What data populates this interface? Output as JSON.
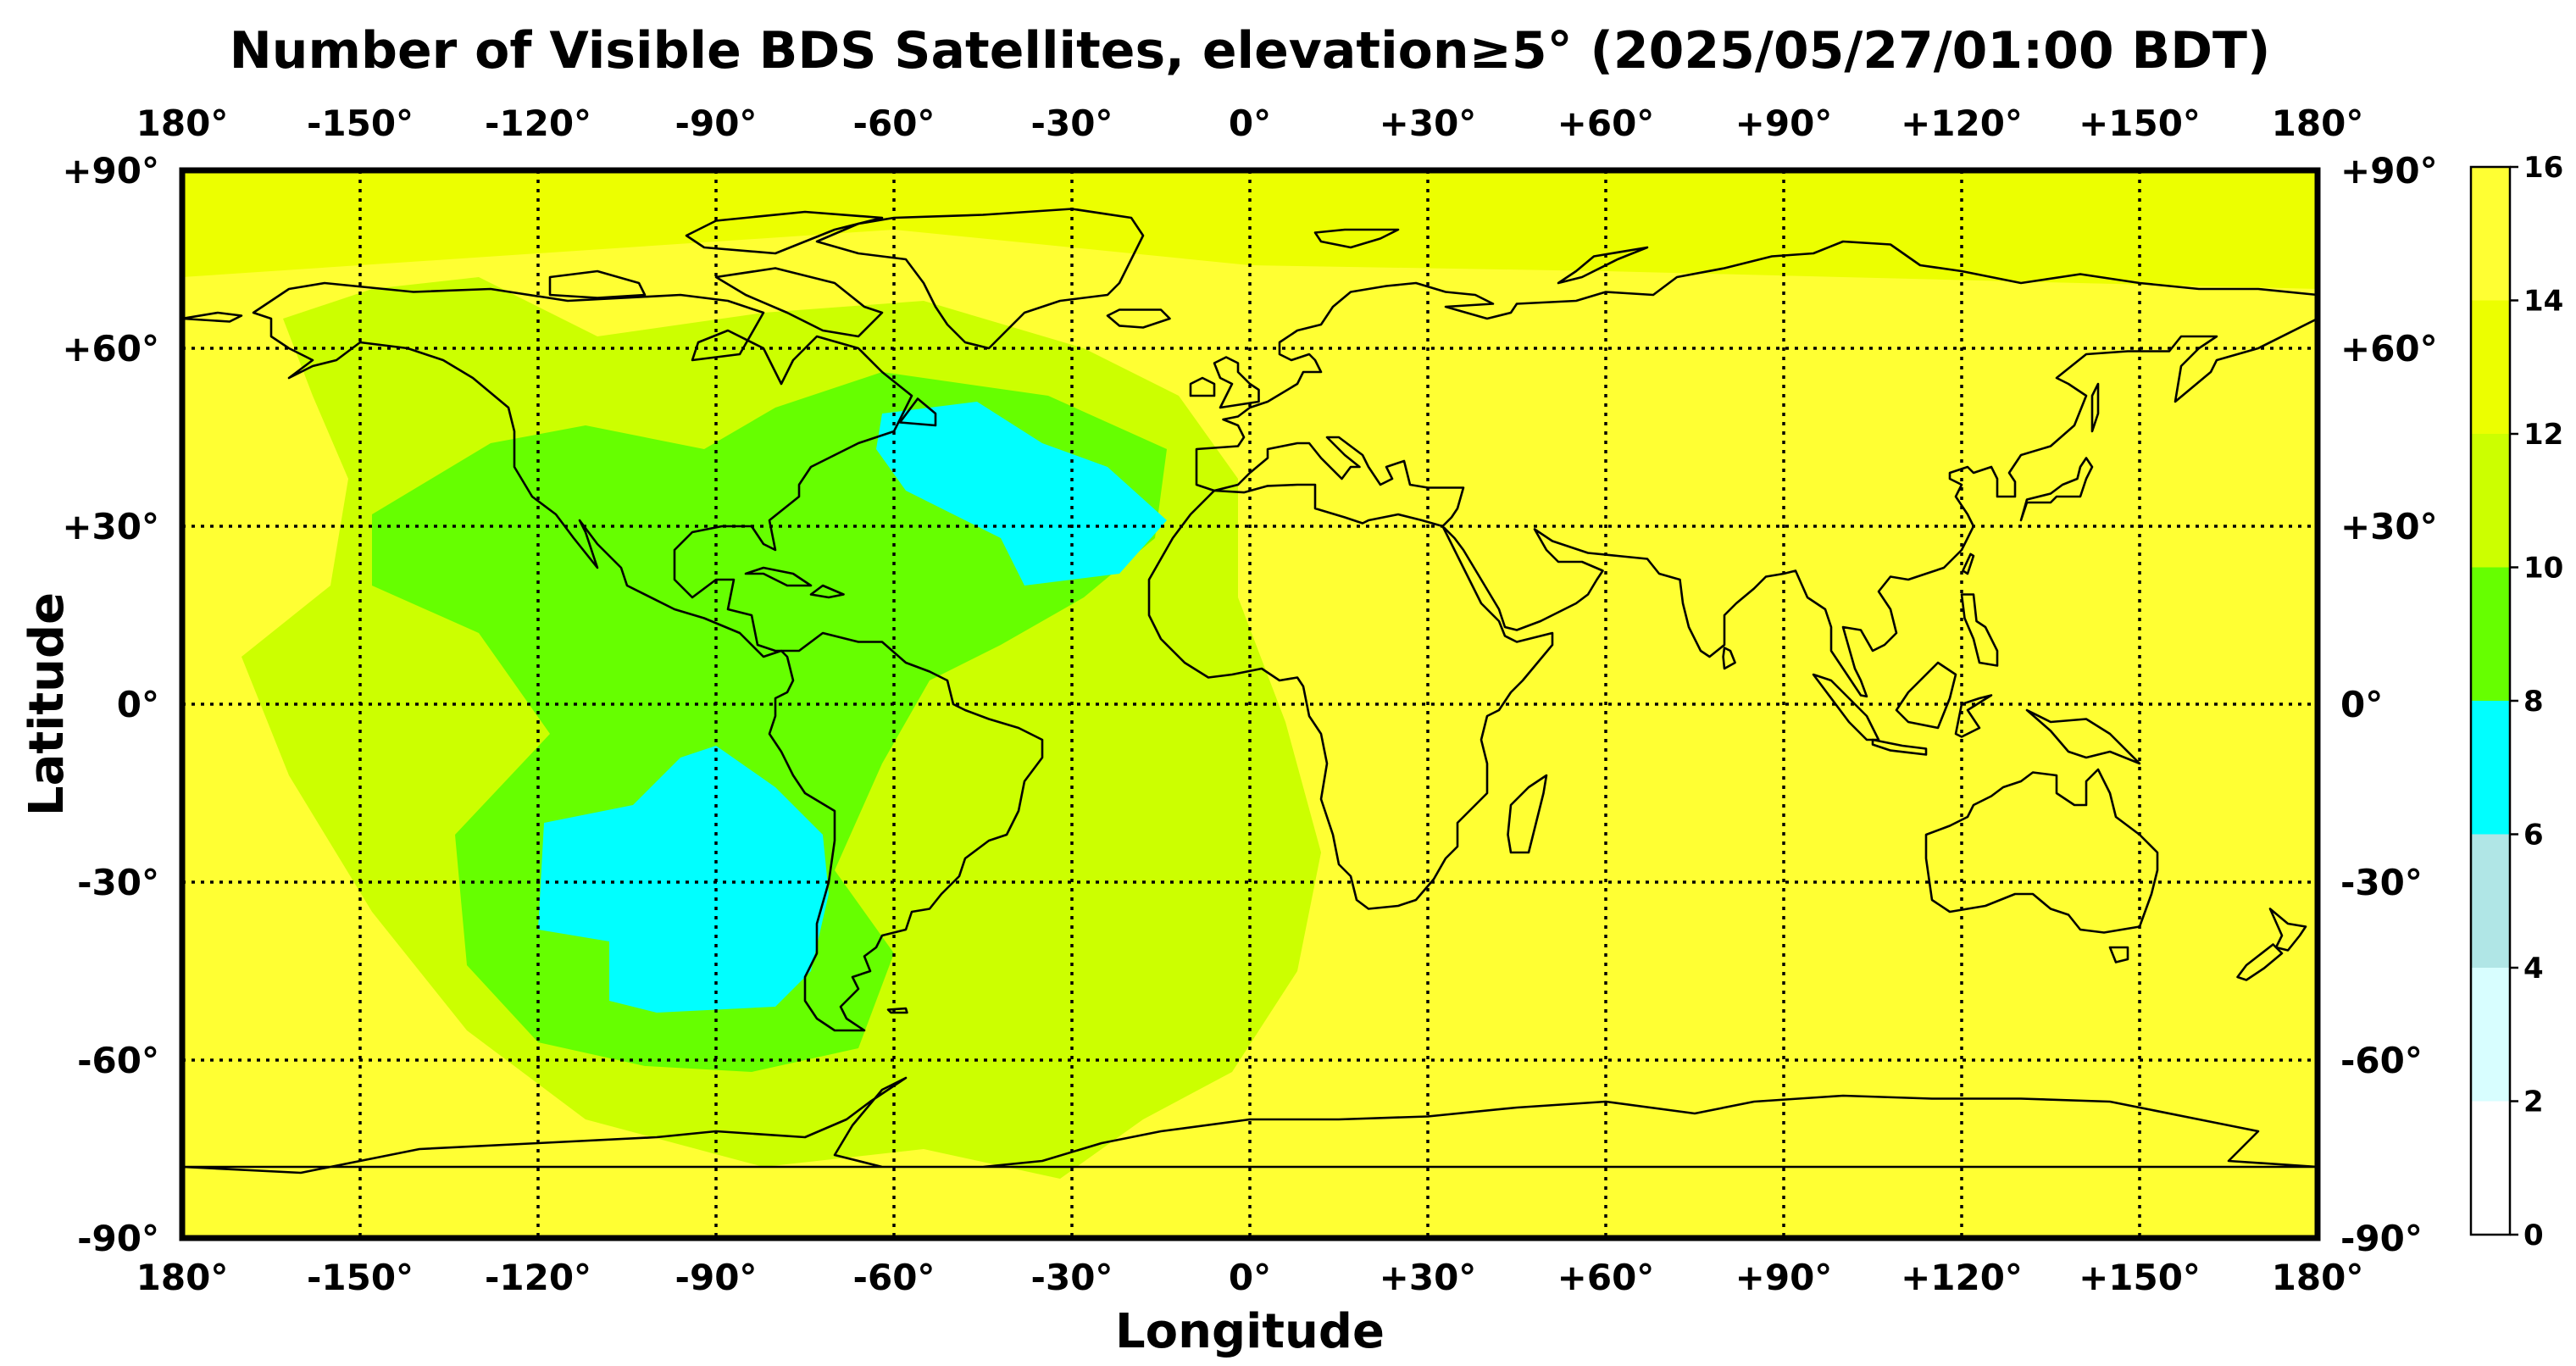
{
  "title": "Number of Visible BDS Satellites, elevation≥5° (2025/05/27/01:00 BDT)",
  "xlabel": "Longitude",
  "ylabel": "Latitude",
  "lon_ticks": [
    "180°",
    "-150°",
    "-120°",
    "-90°",
    "-60°",
    "-30°",
    "0°",
    "+30°",
    "+60°",
    "+90°",
    "+120°",
    "+150°",
    "180°"
  ],
  "lat_ticks": [
    "+90°",
    "+60°",
    "+30°",
    "0°",
    "-30°",
    "-60°",
    "-90°"
  ],
  "colorbar": {
    "ticks": [
      "16",
      "14",
      "12",
      "10",
      "8",
      "6",
      "4",
      "2",
      "0"
    ],
    "colors": [
      "#ffffff",
      "#d8feff",
      "#b0e6e6",
      "#00ffff",
      "#66ff00",
      "#ccff00",
      "#ecff00",
      "#ffff33"
    ]
  },
  "chart_data": {
    "type": "heatmap",
    "title": "Number of Visible BDS Satellites, elevation≥5° (2025/05/27/01:00 BDT)",
    "xlabel": "Longitude",
    "ylabel": "Latitude",
    "xlim": [
      -180,
      180
    ],
    "ylim": [
      -90,
      90
    ],
    "grid": true,
    "color_scale": {
      "min": 0,
      "max": 16,
      "step": 2
    },
    "background_value": 15,
    "regions": [
      {
        "value": 13,
        "polygon": [
          [
            -180,
            90
          ],
          [
            180,
            90
          ],
          [
            180,
            70
          ],
          [
            60,
            73
          ],
          [
            0,
            74
          ],
          [
            -60,
            80
          ],
          [
            -180,
            72
          ]
        ]
      },
      {
        "value": 11,
        "polygon": [
          [
            -163,
            65
          ],
          [
            -158,
            52
          ],
          [
            -152,
            38
          ],
          [
            -155,
            20
          ],
          [
            -170,
            8
          ],
          [
            -162,
            -12
          ],
          [
            -148,
            -35
          ],
          [
            -132,
            -55
          ],
          [
            -112,
            -70
          ],
          [
            -82,
            -78
          ],
          [
            -55,
            -75
          ],
          [
            -32,
            -80
          ],
          [
            -18,
            -70
          ],
          [
            -3,
            -62
          ],
          [
            8,
            -45
          ],
          [
            12,
            -25
          ],
          [
            6,
            -3
          ],
          [
            -2,
            18
          ],
          [
            -2,
            38
          ],
          [
            -12,
            52
          ],
          [
            -28,
            60
          ],
          [
            -55,
            68
          ],
          [
            -82,
            66
          ],
          [
            -110,
            62
          ],
          [
            -130,
            72
          ],
          [
            -148,
            70
          ]
        ]
      },
      {
        "value": 9,
        "polygon": [
          [
            -148,
            32
          ],
          [
            -128,
            44
          ],
          [
            -112,
            47
          ],
          [
            -92,
            43
          ],
          [
            -80,
            50
          ],
          [
            -62,
            56
          ],
          [
            -34,
            52
          ],
          [
            -14,
            43
          ],
          [
            -16,
            28
          ],
          [
            -28,
            18
          ],
          [
            -42,
            10
          ],
          [
            -54,
            4
          ],
          [
            -62,
            -10
          ],
          [
            -70,
            -28
          ],
          [
            -60,
            -42
          ],
          [
            -66,
            -58
          ],
          [
            -84,
            -62
          ],
          [
            -102,
            -61
          ],
          [
            -120,
            -57
          ],
          [
            -132,
            -44
          ],
          [
            -134,
            -22
          ],
          [
            -118,
            -5
          ],
          [
            -130,
            12
          ],
          [
            -148,
            20
          ]
        ]
      },
      {
        "value": 7,
        "polygon": [
          [
            -62,
            49
          ],
          [
            -46,
            51
          ],
          [
            -35,
            44
          ],
          [
            -24,
            40
          ],
          [
            -14,
            31
          ],
          [
            -22,
            22
          ],
          [
            -38,
            20
          ],
          [
            -42,
            28
          ],
          [
            -58,
            36
          ],
          [
            -63,
            43
          ]
        ]
      },
      {
        "value": 7,
        "polygon": [
          [
            -90,
            -7
          ],
          [
            -80,
            -14
          ],
          [
            -72,
            -22
          ],
          [
            -71,
            -32
          ],
          [
            -74,
            -45
          ],
          [
            -80,
            -51
          ],
          [
            -100,
            -52
          ],
          [
            -108,
            -50
          ],
          [
            -108,
            -40
          ],
          [
            -120,
            -38
          ],
          [
            -119,
            -20
          ],
          [
            -104,
            -17
          ],
          [
            -96,
            -9
          ]
        ]
      }
    ]
  }
}
